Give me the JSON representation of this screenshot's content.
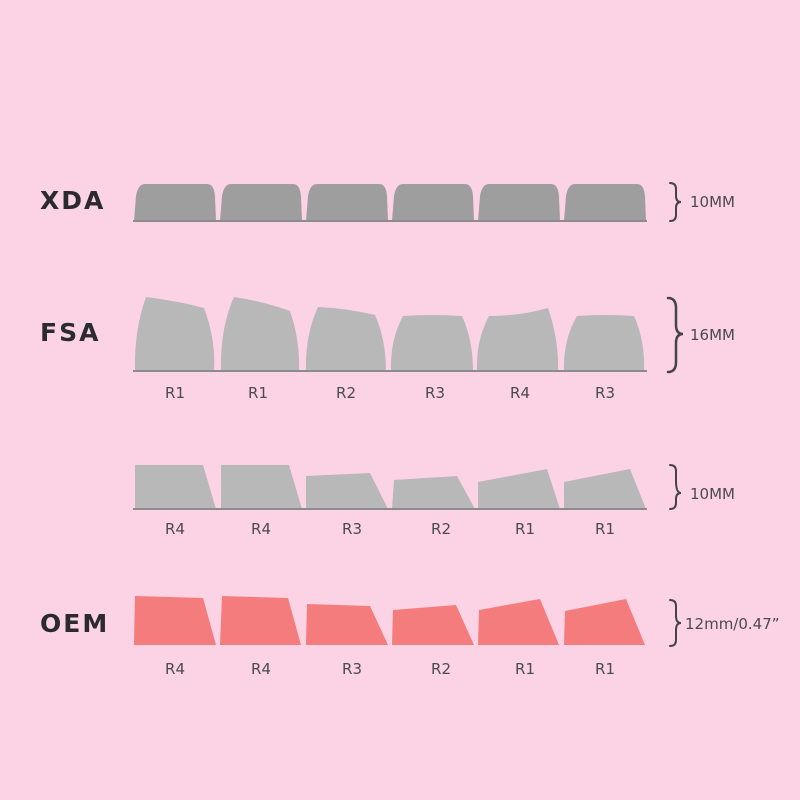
{
  "colors": {
    "background": "#fbd3e4",
    "xda_fill": "#9e9e9e",
    "gray_fill": "#b8b8b8",
    "oem_fill": "#f47c7c",
    "bracket": "#444444"
  },
  "profiles": [
    {
      "name": "XDA",
      "height_label": "10MM",
      "row_labels": []
    },
    {
      "name": "FSA",
      "height_label": "16MM",
      "row_labels": [
        "R1",
        "R1",
        "R2",
        "R3",
        "R4",
        "R3"
      ]
    },
    {
      "name": "",
      "height_label": "10MM",
      "row_labels": [
        "R4",
        "R4",
        "R3",
        "R2",
        "R1",
        "R1"
      ]
    },
    {
      "name": "OEM",
      "height_label": "12mm/0.47”",
      "row_labels": [
        "R4",
        "R4",
        "R3",
        "R2",
        "R1",
        "R1"
      ]
    }
  ]
}
